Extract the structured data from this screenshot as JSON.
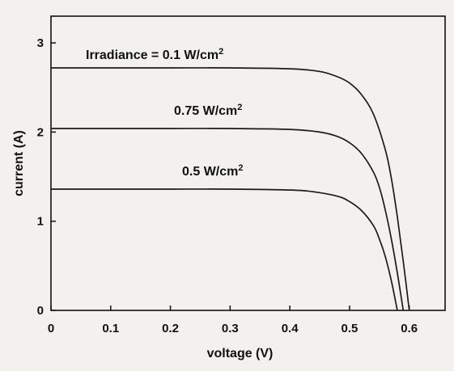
{
  "chart_data": {
    "type": "line",
    "xlabel": "voltage (V)",
    "ylabel": "current (A)",
    "xlim": [
      0,
      0.66
    ],
    "ylim": [
      0,
      3.3
    ],
    "x_ticks": [
      "0",
      "0.1",
      "0.2",
      "0.3",
      "0.4",
      "0.5",
      "0.6"
    ],
    "y_ticks": [
      "0",
      "1",
      "2",
      "3"
    ],
    "grid": false,
    "series": [
      {
        "label_text": "Irradiance = 0.1 W/cm",
        "label_sup": "2",
        "x": [
          0,
          0.1,
          0.2,
          0.3,
          0.4,
          0.45,
          0.48,
          0.5,
          0.52,
          0.54,
          0.56,
          0.57,
          0.58,
          0.59,
          0.6
        ],
        "y": [
          2.72,
          2.72,
          2.72,
          2.72,
          2.71,
          2.68,
          2.62,
          2.55,
          2.42,
          2.2,
          1.8,
          1.48,
          1.05,
          0.55,
          0.0
        ]
      },
      {
        "label_text": "0.75 W/cm",
        "label_sup": "2",
        "x": [
          0,
          0.1,
          0.2,
          0.3,
          0.4,
          0.45,
          0.48,
          0.5,
          0.52,
          0.54,
          0.55,
          0.56,
          0.57,
          0.58,
          0.59
        ],
        "y": [
          2.04,
          2.04,
          2.04,
          2.04,
          2.03,
          2.0,
          1.95,
          1.88,
          1.76,
          1.55,
          1.38,
          1.12,
          0.8,
          0.42,
          0.0
        ]
      },
      {
        "label_text": "0.5 W/cm",
        "label_sup": "2",
        "x": [
          0,
          0.1,
          0.2,
          0.3,
          0.4,
          0.44,
          0.48,
          0.5,
          0.52,
          0.54,
          0.55,
          0.56,
          0.57,
          0.58
        ],
        "y": [
          1.36,
          1.36,
          1.36,
          1.36,
          1.35,
          1.33,
          1.28,
          1.22,
          1.12,
          0.95,
          0.8,
          0.6,
          0.33,
          0.0
        ]
      }
    ],
    "colors": {
      "line": "#1a1a1a",
      "background": "#f2f1ee"
    }
  }
}
